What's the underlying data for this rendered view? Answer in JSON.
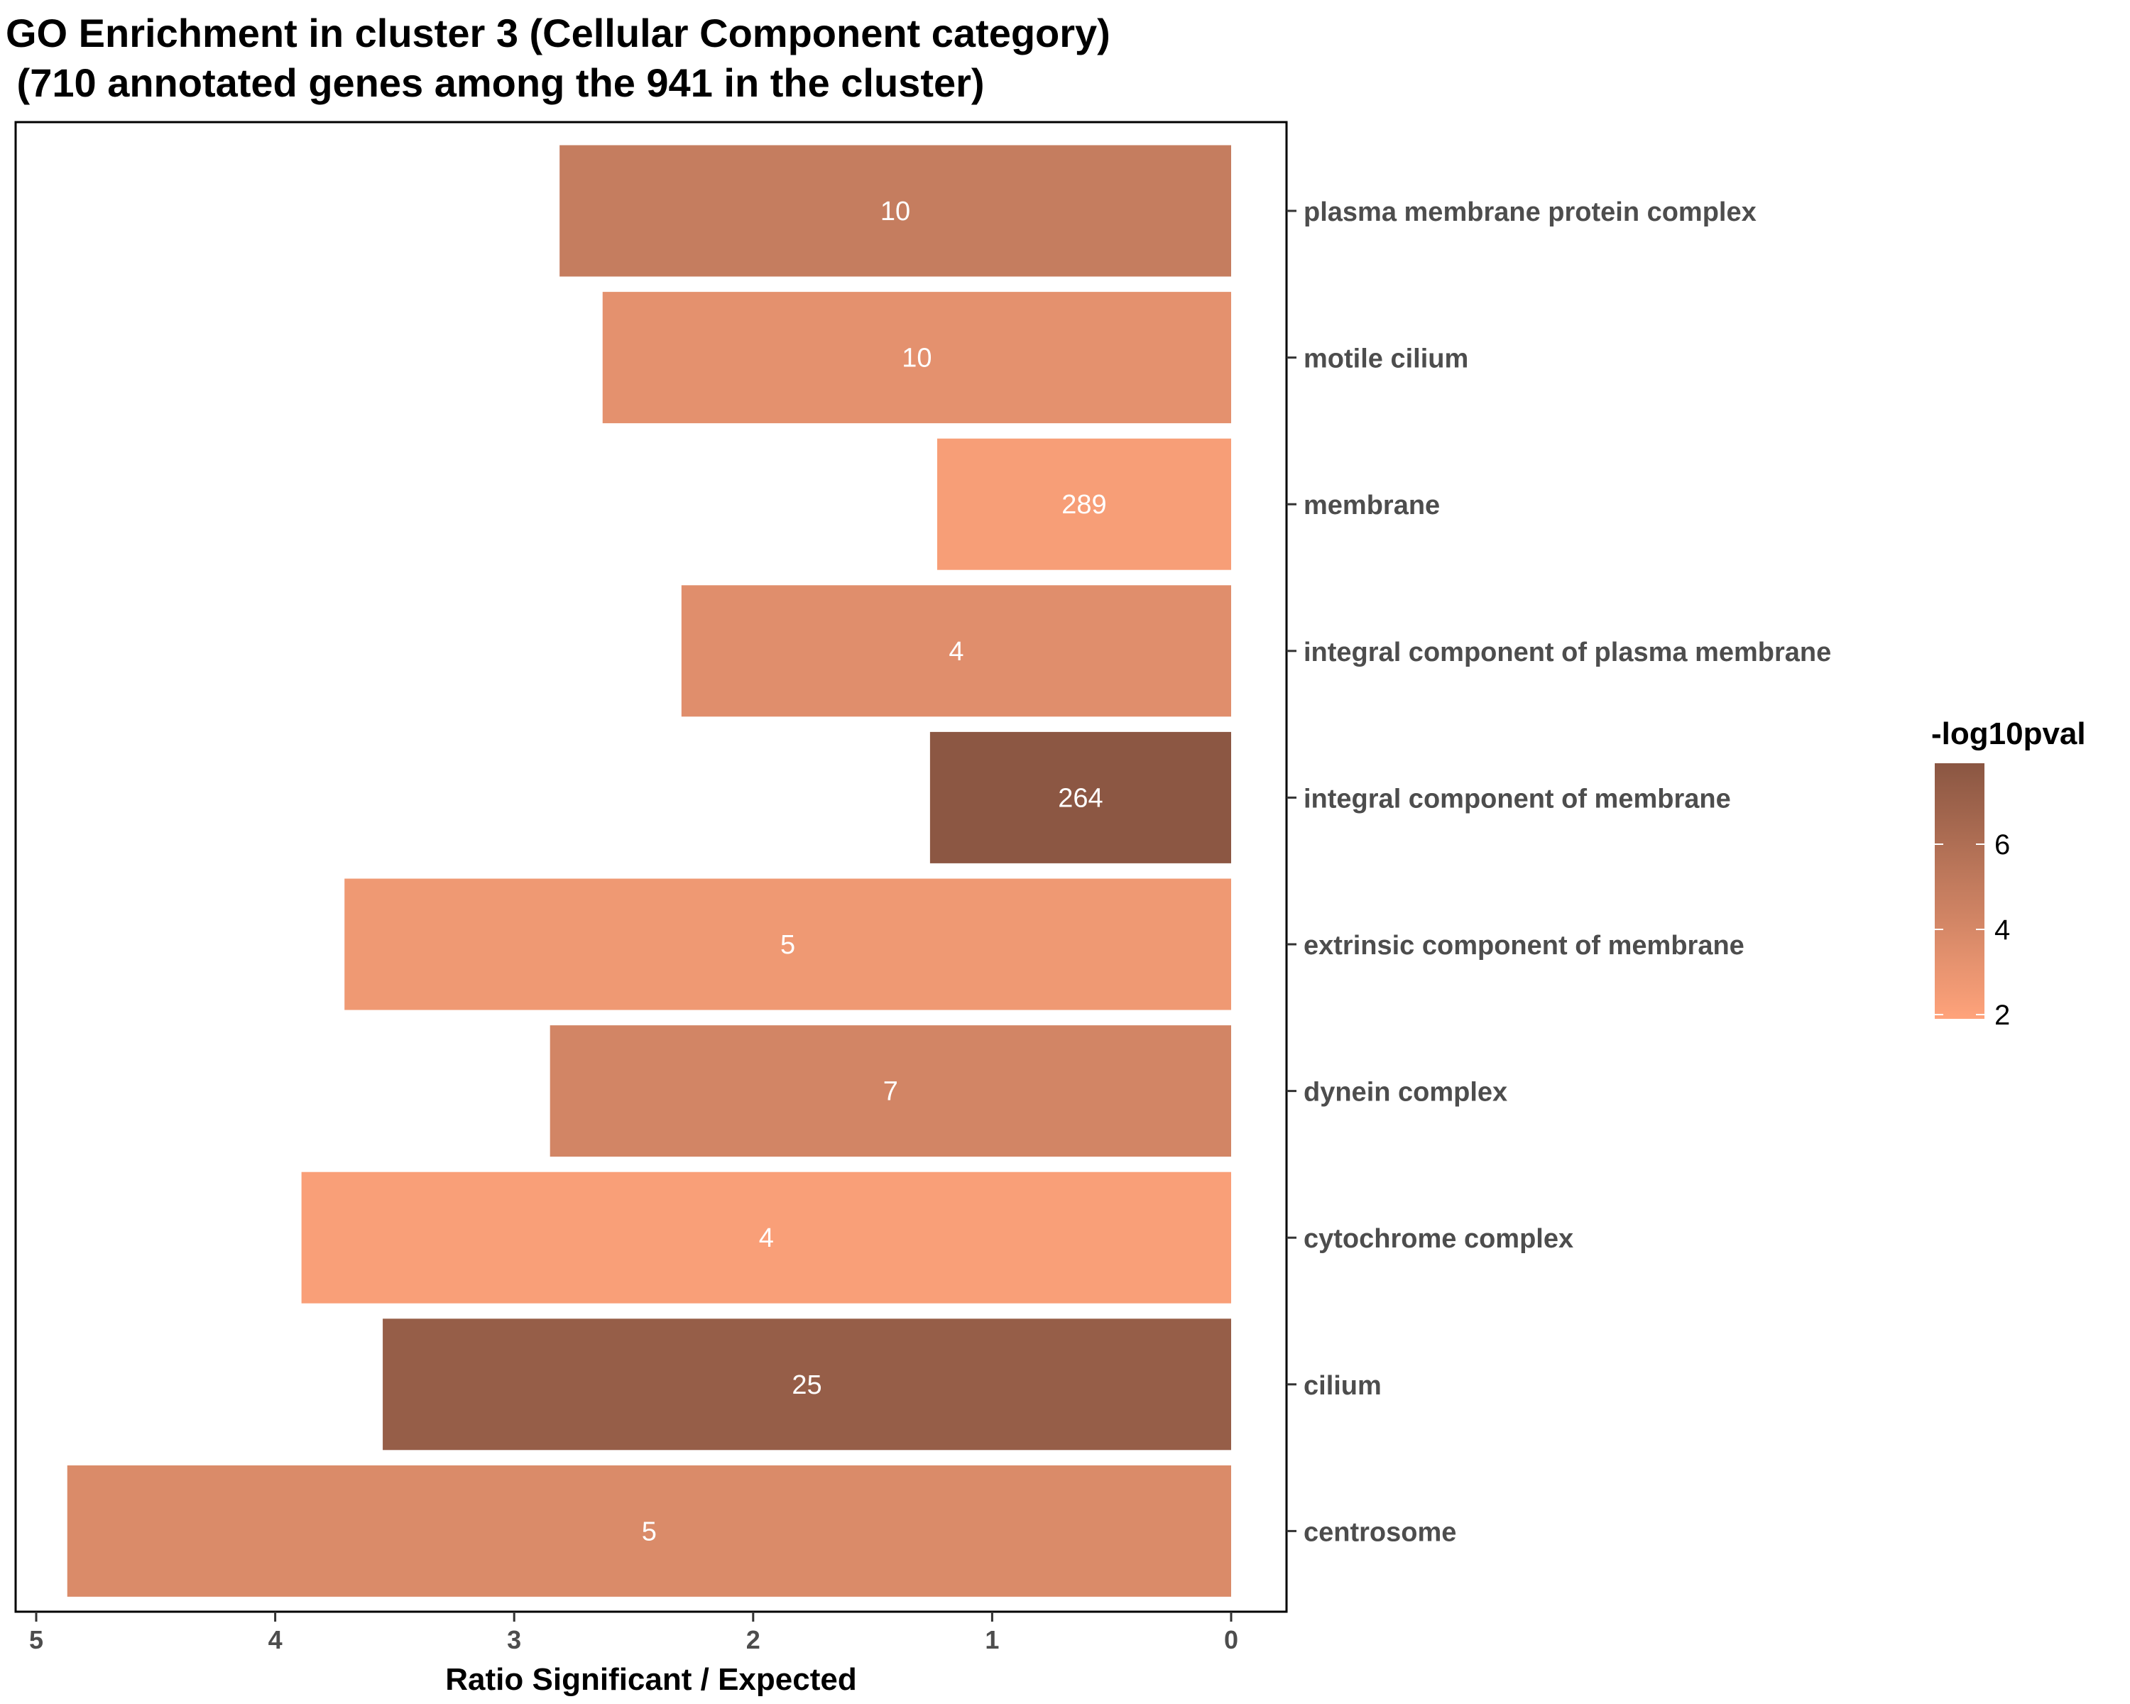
{
  "chart_data": {
    "type": "bar",
    "orientation": "horizontal",
    "title": "GO Enrichment in cluster 3 (Cellular Component category)",
    "subtitle": " (710 annotated genes among the 941 in the cluster)",
    "xlabel": "Ratio Significant / Expected",
    "ylabel": "",
    "xlim": [
      0,
      5.1
    ],
    "x_reversed": true,
    "x_ticks": [
      5,
      4,
      3,
      2,
      1,
      0
    ],
    "x_tick_labels": [
      "5",
      "4",
      "3",
      "2",
      "1",
      "0"
    ],
    "categories": [
      "plasma membrane protein complex",
      "motile cilium",
      "membrane",
      "integral component of plasma membrane",
      "integral component of membrane",
      "extrinsic component of membrane",
      "dynein complex",
      "cytochrome complex",
      "cilium",
      "centrosome"
    ],
    "values": [
      2.81,
      2.63,
      1.23,
      2.3,
      1.26,
      3.71,
      2.85,
      3.89,
      3.55,
      4.87
    ],
    "bar_labels": [
      "10",
      "10",
      "289",
      "4",
      "264",
      "5",
      "7",
      "4",
      "25",
      "5"
    ],
    "color_values": [
      4.9,
      3.3,
      2.3,
      3.5,
      7.8,
      2.7,
      4.2,
      2.2,
      7.3,
      3.8
    ],
    "legend": {
      "title": "-log10pval",
      "position": "right",
      "range": [
        1.9,
        7.9
      ],
      "ticks": [
        2,
        4,
        6
      ],
      "tick_labels": [
        "2",
        "4",
        "6"
      ],
      "low_color": "#ffa37b",
      "high_color": "#8a5642"
    },
    "grid": false
  }
}
